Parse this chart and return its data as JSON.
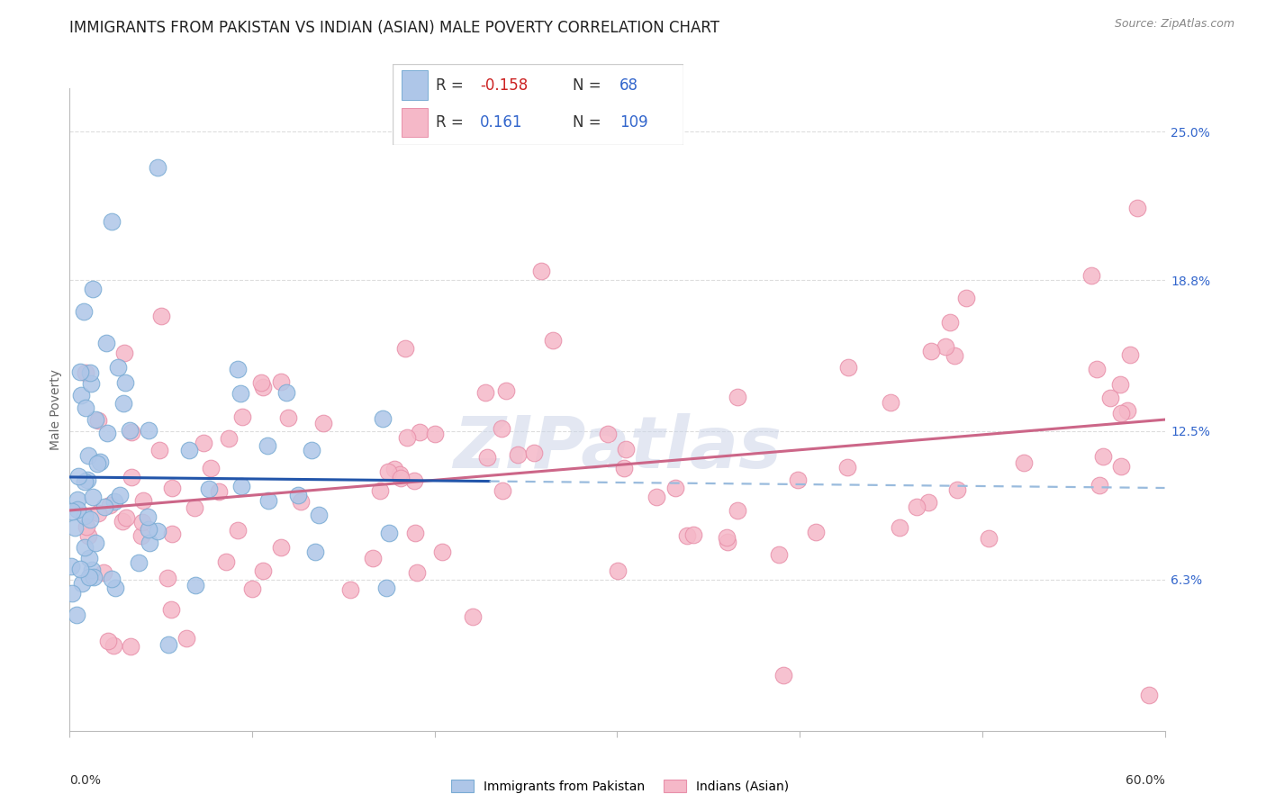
{
  "title": "IMMIGRANTS FROM PAKISTAN VS INDIAN (ASIAN) MALE POVERTY CORRELATION CHART",
  "source": "Source: ZipAtlas.com",
  "ylabel": "Male Poverty",
  "y_tick_labels": [
    "6.3%",
    "12.5%",
    "18.8%",
    "25.0%"
  ],
  "y_tick_values": [
    0.063,
    0.125,
    0.188,
    0.25
  ],
  "xlim": [
    0.0,
    0.6
  ],
  "ylim": [
    0.0,
    0.268
  ],
  "pakistan_fill": "#aec6e8",
  "pakistan_edge": "#7aacd4",
  "india_fill": "#f5b8c8",
  "india_edge": "#e890aa",
  "pak_trend_color": "#2255aa",
  "pak_dash_color": "#99bbdd",
  "ind_trend_color": "#cc6688",
  "legend_text_color": "#3366cc",
  "legend_neg_color": "#cc2222",
  "background_color": "#ffffff",
  "grid_color": "#dddddd",
  "title_fontsize": 12,
  "axis_label_fontsize": 10,
  "tick_fontsize": 10,
  "watermark_color": "#ccd5e8"
}
